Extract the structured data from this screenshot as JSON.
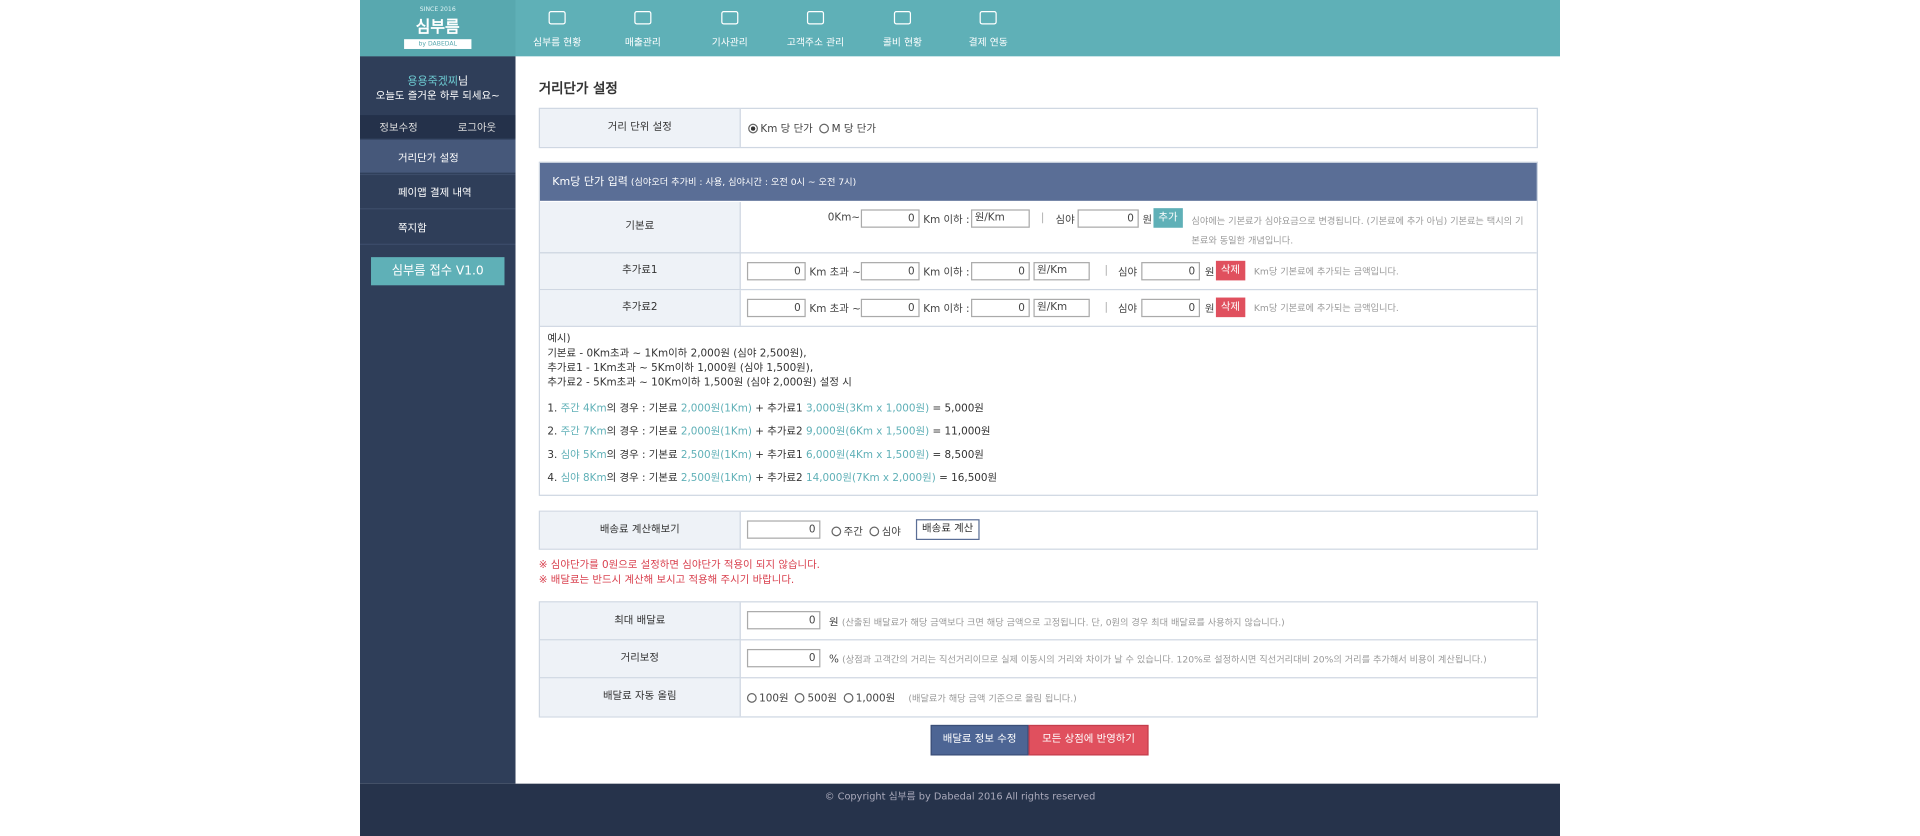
{
  "logo": {
    "since": "SINCE 2016",
    "name": "심부름",
    "by": "by DABEDAL"
  },
  "nav": [
    "심부름 현황",
    "매출관리",
    "기사관리",
    "고객주소 관리",
    "콜비 현황",
    "결제 연동"
  ],
  "sidebar": {
    "user": "용용죽겠찌",
    "suffix": "님",
    "greeting": "오늘도 즐거운 하루 되세요~",
    "buttons": [
      "정보수정",
      "로그아웃"
    ],
    "menu": [
      "거리단가 설정",
      "페이앱 결제 내역",
      "쪽지함"
    ],
    "version": "심부름 접수 V1.0"
  },
  "main": {
    "title": "거리단가 설정",
    "unit": {
      "label": "거리 단위 설정",
      "options": [
        "Km 당 단가",
        "M 당 단가"
      ]
    },
    "section": {
      "title": "Km당 단가 입력",
      "sub": " (심야오더 추가비 : 사용, 심야시간 : 오전 0시 ~ 오전 7시)"
    },
    "base": {
      "label": "기본료",
      "from": "0Km~",
      "input1": "0",
      "upto": "Km 이하 :",
      "select": "원/Km",
      "sep": "|",
      "night": "심야",
      "input2": "0",
      "won": "원",
      "button": "추가",
      "note": "심야에는 기본료가 심야요금으로 변경됩니다. (기본료에 추가 아님) 기본료는 택시의 기본료와 동일한 개념입니다."
    },
    "extras": [
      {
        "label": "추가료1",
        "input1": "0",
        "over": "Km 초과 ~",
        "input2": "0",
        "upto": "Km 이하 :",
        "input3": "0",
        "select": "원/Km",
        "sep": "|",
        "night": "심야",
        "input4": "0",
        "won": "원",
        "button": "삭제",
        "note": "Km당 기본료에 추가되는 금액입니다."
      },
      {
        "label": "추가료2",
        "input1": "0",
        "over": "Km 초과 ~",
        "input2": "0",
        "upto": "Km 이하 :",
        "input3": "0",
        "select": "원/Km",
        "sep": "|",
        "night": "심야",
        "input4": "0",
        "won": "원",
        "button": "삭제",
        "note": "Km당 기본료에 추가되는 금액입니다."
      }
    ],
    "example": {
      "head": [
        "예시)",
        "기본료 - 0Km초과 ~ 1Km이하 2,000원 (심야 2,500원),",
        "추가료1 - 1Km초과 ~ 5Km이하 1,000원 (심야 1,500원),",
        "추가료2 - 5Km초과 ~ 10Km이하 1,500원 (심야 2,000원) 설정 시"
      ],
      "lines": [
        [
          "1. ",
          "주간 4Km",
          "의 경우 : 기본료 ",
          "2,000원(1Km)",
          " + 추가료1 ",
          "3,000원(3Km x 1,000원)",
          " = 5,000원"
        ],
        [
          "2. ",
          "주간 7Km",
          "의 경우 : 기본료 ",
          "2,000원(1Km)",
          " + 추가료2 ",
          "9,000원(6Km x 1,500원)",
          " = 11,000원"
        ],
        [
          "3. ",
          "심야 5Km",
          "의 경우 : 기본료 ",
          "2,500원(1Km)",
          " + 추가료1 ",
          "6,000원(4Km x 1,500원)",
          " = 8,500원"
        ],
        [
          "4. ",
          "심야 8Km",
          "의 경우 : 기본료 ",
          "2,500원(1Km)",
          " + 추가료2 ",
          "14,000원(7Km x 2,000원)",
          " = 16,500원"
        ]
      ]
    },
    "calc": {
      "label": "배송료 계산해보기",
      "input": "0",
      "options": [
        "주간",
        "심야"
      ],
      "button": "배송료 계산"
    },
    "warnings": [
      "※ 심야단가를 0원으로 설정하면 심야단가 적용이 되지 않습니다.",
      "※ 배달료는 반드시 계산해 보시고 적용해 주시기 바랍니다."
    ],
    "max": {
      "label": "최대 배달료",
      "input": "0",
      "unit": "원",
      "note": "(산출된 배달료가 해당 금액보다 크면 해당 금액으로 고정됩니다. 단, 0원의 경우 최대 배달료를 사용하지 않습니다.)"
    },
    "correction": {
      "label": "거리보정",
      "input": "0",
      "unit": "%",
      "note": "(상점과 고객간의 거리는 직선거리이므로 실제 이동시의 거리와 차이가 날 수 있습니다. 120%로 설정하시면 직선거리대비 20%의 거리를 추가해서 비용이 계산됩니다.)"
    },
    "round": {
      "label": "배달료 자동 올림",
      "options": [
        "100원",
        "500원",
        "1,000원"
      ],
      "note": "(배달료가 해당 금액 기준으로 올림 됩니다.)"
    },
    "buttons": [
      "배달료 정보 수정",
      "모든 상점에 반영하기"
    ]
  },
  "footer": "© Copyright 심부름 by Dabedal 2016 All rights reserved"
}
